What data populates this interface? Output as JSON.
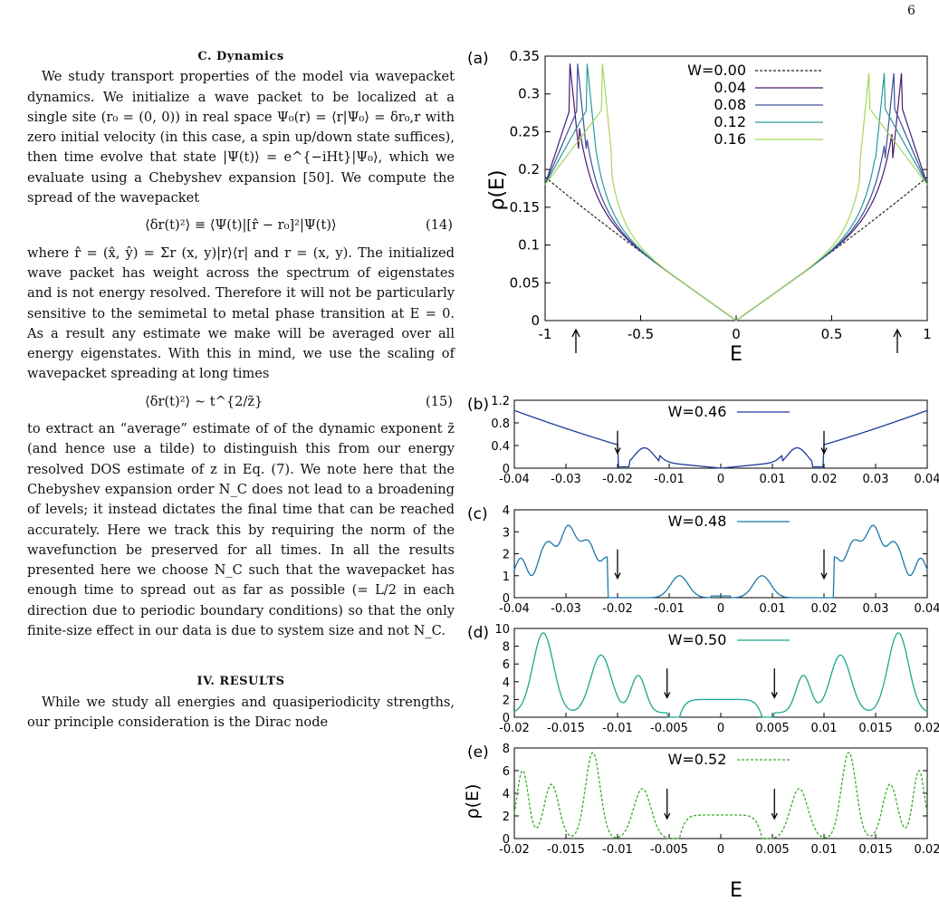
{
  "page_number": "6",
  "section_c": {
    "title": "C.   Dynamics",
    "p1": "We study transport properties of the model via wavepacket dynamics. We initialize a wave packet to be localized at a single site (r₀ = (0, 0)) in real space Ψ₀(r) = ⟨r|Ψ₀⟩ = δr₀,r with zero initial velocity (in this case, a spin up/down state suffices), then time evolve that state |Ψ(t)⟩ = e^{−iHt}|Ψ₀⟩, which we evaluate using a Chebyshev expansion [50]. We compute the spread of the wavepacket",
    "eq14": "⟨δr(t)²⟩ ≡ ⟨Ψ(t)|[r̂ − r₀]²|Ψ(t)⟩",
    "eq14_num": "(14)",
    "p2": "where r̂ = (x̂, ŷ) = Σr (x, y)|r⟩⟨r| and r = (x, y). The initialized wave packet has weight across the spectrum of eigenstates and is not energy resolved. Therefore it will not be particularly sensitive to the semimetal to metal phase transition at E = 0. As a result any estimate we make will be averaged over all energy eigenstates. With this in mind, we use the scaling of wavepacket spreading at long times",
    "eq15": "⟨δr(t)²⟩ ∼ t^{2/z̃}",
    "eq15_num": "(15)",
    "p3": "to extract an “average” estimate of of the dynamic exponent z̃ (and hence use a tilde) to distinguish this from our energy resolved DOS estimate of z in Eq. (7). We note here that the Chebyshev expansion order N_C does not lead to a broadening of levels; it instead dictates the final time that can be reached accurately. Here we track this by requiring the norm of the wavefunction be preserved for all times. In all the results presented here we choose N_C such that the wavepacket has enough time to spread out as far as possible (= L/2 in each direction due to periodic boundary conditions) so that the only finite-size effect in our data is due to system size and not N_C."
  },
  "section_iv": {
    "title": "IV.   RESULTS",
    "p1": "While we study all energies and quasiperiodicity strengths, our principle consideration is the Dirac node"
  },
  "figure": {
    "panel_a": {
      "label": "(a)",
      "ylabel": "ρ(E)",
      "xlabel": "E",
      "yticks": [
        "0",
        "0.05",
        "0.1",
        "0.15",
        "0.2",
        "0.25",
        "0.3",
        "0.35"
      ],
      "xticks": [
        "-1",
        "-0.5",
        "0",
        "0.5",
        "1"
      ],
      "legend": [
        {
          "name": "W=0.00",
          "color": "#222222",
          "dashed": true
        },
        {
          "name": "0.04",
          "color": "#4b1a6e",
          "dashed": false
        },
        {
          "name": "0.08",
          "color": "#3b4f9a",
          "dashed": false
        },
        {
          "name": "0.12",
          "color": "#2a9a9a",
          "dashed": false
        },
        {
          "name": "0.16",
          "color": "#a6d65a",
          "dashed": false
        }
      ]
    },
    "panel_b": {
      "label": "(b)",
      "legend": "W=0.46",
      "color": "#1f3a9a",
      "yticks": [
        "0",
        "0.4",
        "0.8",
        "1.2"
      ],
      "xticks": [
        "-0.04",
        "-0.03",
        "-0.02",
        "-0.01",
        "0",
        "0.01",
        "0.02",
        "0.03",
        "0.04"
      ]
    },
    "panel_c": {
      "label": "(c)",
      "legend": "W=0.48",
      "color": "#1b78a8",
      "yticks": [
        "0",
        "1",
        "2",
        "3",
        "4"
      ],
      "xticks": [
        "-0.04",
        "-0.03",
        "-0.02",
        "-0.01",
        "0",
        "0.01",
        "0.02",
        "0.03",
        "0.04"
      ]
    },
    "panel_d": {
      "label": "(d)",
      "legend": "W=0.50",
      "color": "#1aa88f",
      "yticks": [
        "0",
        "2",
        "4",
        "6",
        "8",
        "10"
      ],
      "xticks": [
        "-0.02",
        "-0.015",
        "-0.01",
        "-0.005",
        "0",
        "0.005",
        "0.01",
        "0.015",
        "0.02"
      ]
    },
    "panel_e": {
      "label": "(e)",
      "legend": "W=0.52",
      "color": "#3aaa2a",
      "ylabel": "ρ(E)",
      "xlabel": "E",
      "yticks": [
        "0",
        "2",
        "4",
        "6",
        "8"
      ],
      "xticks": [
        "-0.02",
        "-0.015",
        "-0.01",
        "-0.005",
        "0",
        "0.005",
        "0.01",
        "0.015",
        "0.02"
      ]
    }
  }
}
